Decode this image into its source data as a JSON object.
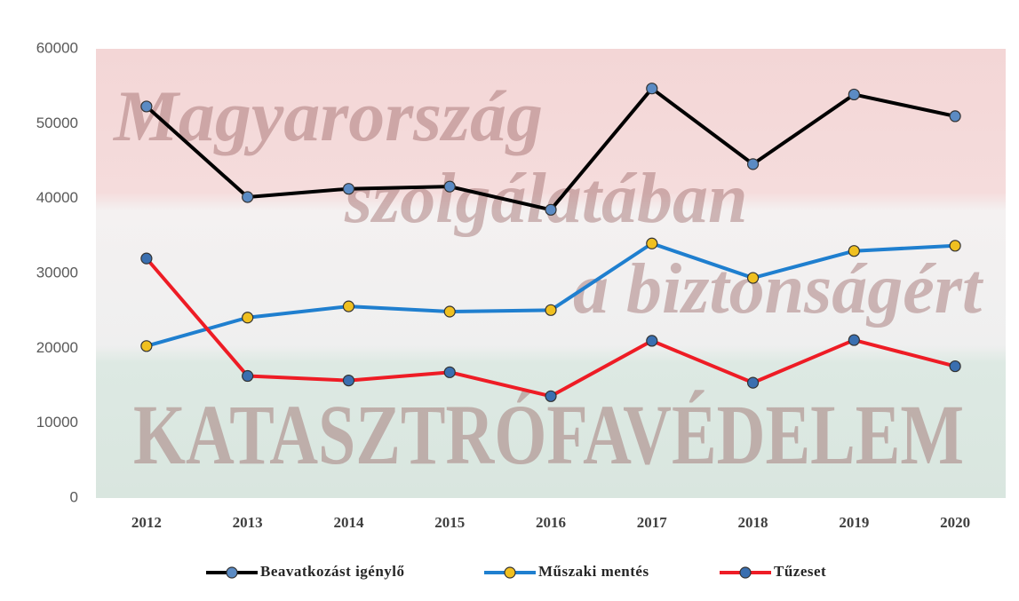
{
  "chart_data": {
    "type": "line",
    "categories": [
      "2012",
      "2013",
      "2014",
      "2015",
      "2016",
      "2017",
      "2018",
      "2019",
      "2020"
    ],
    "series": [
      {
        "name": "Beavatkozást igénylő",
        "color": "#000000",
        "marker_color": "#5b8bc4",
        "values": [
          52300,
          40200,
          41300,
          41600,
          38500,
          54700,
          44600,
          53900,
          51000
        ]
      },
      {
        "name": "Műszaki mentés",
        "color": "#1f7fcf",
        "marker_color": "#f0c020",
        "values": [
          20300,
          24100,
          25600,
          24900,
          25100,
          34000,
          29400,
          33000,
          33700
        ]
      },
      {
        "name": "Tűzeset",
        "color": "#ee1c25",
        "marker_color": "#3a6fb0",
        "values": [
          32000,
          16300,
          15700,
          16800,
          13600,
          21000,
          15400,
          21100,
          17600
        ]
      }
    ],
    "ylim": [
      0,
      60000
    ],
    "yticks": [
      0,
      10000,
      20000,
      30000,
      40000,
      50000,
      60000
    ],
    "annotations": [
      "Magyarország",
      "szolgálatában",
      "a biztonságért",
      "KATASZTRÓFAVÉDELEM"
    ]
  }
}
